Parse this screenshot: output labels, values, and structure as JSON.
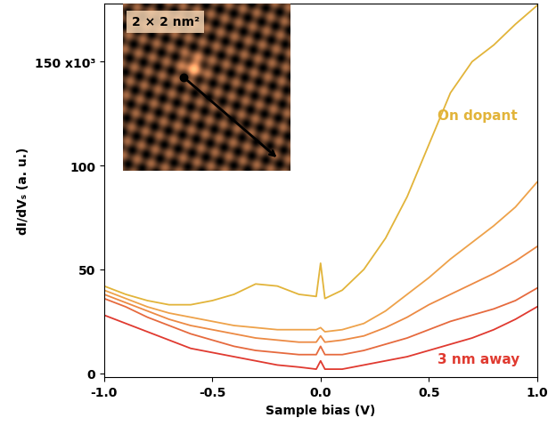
{
  "chart_data": {
    "type": "line",
    "x_label": "Sample bias (V)",
    "y_label": "dI/dVₛ (a. u.)",
    "annotations": [
      "On dopant",
      "3 nm away"
    ],
    "inset_label": "2 × 2 nm²",
    "x": [
      -1.0,
      -0.9,
      -0.8,
      -0.7,
      -0.6,
      -0.5,
      -0.4,
      -0.3,
      -0.2,
      -0.1,
      -0.02,
      0.0,
      0.02,
      0.1,
      0.2,
      0.3,
      0.4,
      0.5,
      0.6,
      0.7,
      0.8,
      0.9,
      1.0
    ],
    "series": [
      {
        "color": "#e2b43a",
        "values": [
          42,
          38,
          35,
          33,
          33,
          35,
          38,
          43,
          42,
          38,
          37,
          53,
          36,
          40,
          50,
          65,
          85,
          110,
          135,
          150,
          158,
          168,
          177
        ]
      },
      {
        "color": "#eea24a",
        "values": [
          40,
          36,
          32,
          29,
          27,
          25,
          23,
          22,
          21,
          21,
          21,
          22,
          20,
          21,
          24,
          30,
          38,
          46,
          55,
          63,
          71,
          80,
          92
        ]
      },
      {
        "color": "#ec8a44",
        "values": [
          38,
          34,
          30,
          26,
          23,
          21,
          19,
          17,
          16,
          15,
          15,
          18,
          15,
          16,
          18,
          22,
          27,
          33,
          38,
          43,
          48,
          54,
          61
        ]
      },
      {
        "color": "#e66a3e",
        "values": [
          36,
          32,
          27,
          23,
          19,
          16,
          13,
          11,
          10,
          9,
          9,
          13,
          9,
          9,
          11,
          14,
          17,
          21,
          25,
          28,
          31,
          35,
          41
        ]
      },
      {
        "color": "#e03a30",
        "values": [
          28,
          24,
          20,
          16,
          12,
          10,
          8,
          6,
          4,
          3,
          2,
          6,
          2,
          2,
          4,
          6,
          8,
          11,
          14,
          17,
          21,
          26,
          32
        ]
      }
    ],
    "xlim": [
      -1.0,
      1.0
    ],
    "xticks": [
      {
        "value": -1.0,
        "label": "-1.0"
      },
      -0.5,
      {
        "value": 0.0,
        "label": "0.0"
      },
      0.5,
      {
        "value": 1.0,
        "label": "1.0"
      }
    ],
    "ylim": [
      -2,
      178
    ],
    "yticks": [
      0,
      50,
      100,
      {
        "value": 150,
        "label": "150 x10³"
      }
    ],
    "grid": false
  }
}
